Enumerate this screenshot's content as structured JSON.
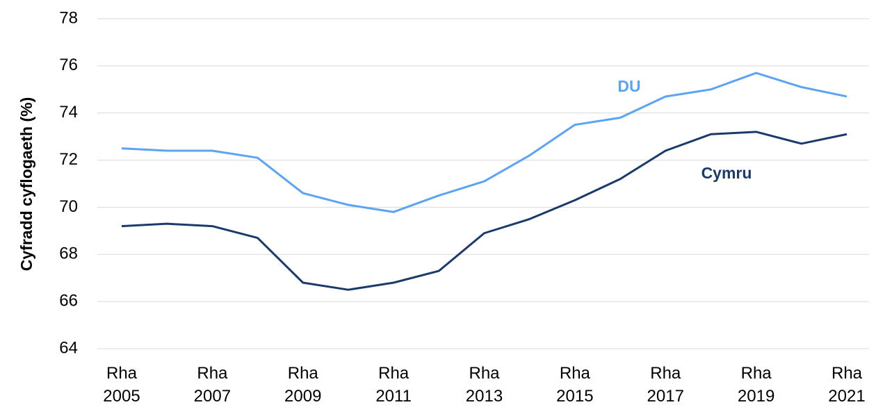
{
  "chart_data": {
    "type": "line",
    "y_label": "Cyfradd cyflogaeth (%)",
    "categories": [
      "Rha 2005",
      null,
      "Rha 2007",
      null,
      "Rha 2009",
      null,
      "Rha 2011",
      null,
      "Rha 2013",
      null,
      "Rha 2015",
      null,
      "Rha 2017",
      null,
      "Rha 2019",
      null,
      "Rha 2021"
    ],
    "series": [
      {
        "name": "DU",
        "color": "#5ba3f5",
        "values": [
          72.5,
          72.4,
          72.4,
          72.1,
          70.6,
          70.1,
          69.8,
          70.5,
          71.1,
          72.2,
          73.5,
          73.8,
          74.7,
          75.0,
          75.7,
          75.1,
          74.7
        ]
      },
      {
        "name": "Cymru",
        "color": "#1a3a6b",
        "values": [
          69.2,
          69.3,
          69.2,
          68.7,
          66.8,
          66.5,
          66.8,
          67.3,
          68.9,
          69.5,
          70.3,
          71.2,
          72.4,
          73.1,
          73.2,
          72.7,
          73.1
        ]
      }
    ],
    "ylim": [
      64,
      78
    ],
    "yticks": [
      64,
      66,
      68,
      70,
      72,
      74,
      76,
      78
    ],
    "grid": true
  }
}
